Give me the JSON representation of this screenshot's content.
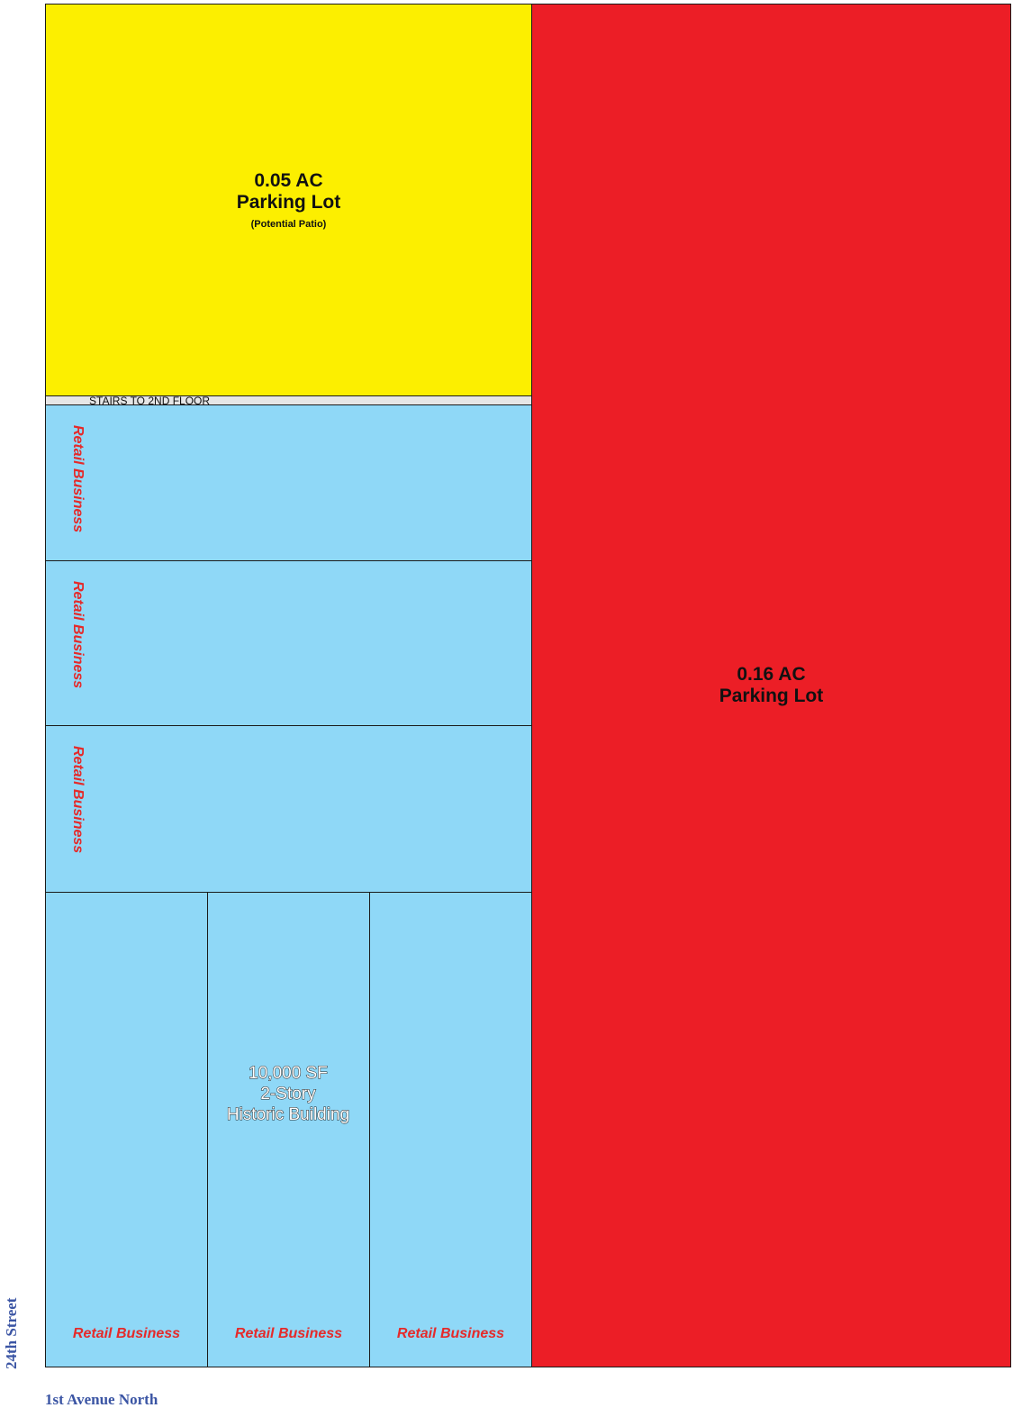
{
  "colors": {
    "small_lot": "#fcef00",
    "large_lot": "#ec1e26",
    "building": "#8fd8f7",
    "stairs": "#e6e6e6",
    "retail_label": "#e52a2a",
    "street_label": "#3b55a4"
  },
  "small_lot": {
    "area": "0.05 AC",
    "name": "Parking Lot",
    "note": "(Potential Patio)"
  },
  "large_lot": {
    "area": "0.16 AC",
    "name": "Parking Lot"
  },
  "stairs": {
    "label": "STAIRS TO 2ND FLOOR"
  },
  "building": {
    "size": "10,000 SF",
    "stories": "2-Story",
    "type": "Historic Building"
  },
  "retail_units": [
    {
      "label": "Retail Business"
    },
    {
      "label": "Retail Business"
    },
    {
      "label": "Retail Business"
    },
    {
      "label": "Retail Business"
    },
    {
      "label": "Retail Business"
    },
    {
      "label": "Retail Business"
    }
  ],
  "streets": {
    "west": "24th Street",
    "south": "1st Avenue North"
  }
}
